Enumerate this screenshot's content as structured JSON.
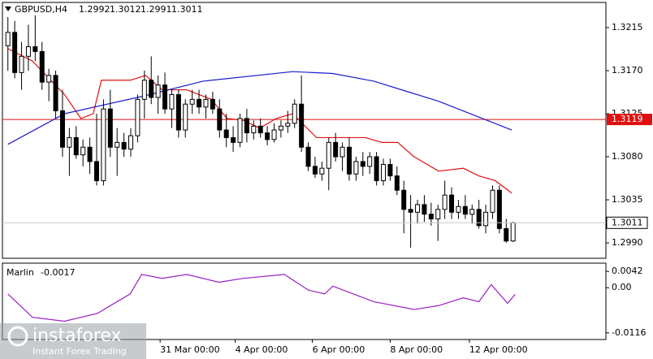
{
  "chart_data": [
    {
      "type": "candlestick",
      "title": "GBPUSD,H4",
      "open": [
        1.3196,
        1.321,
        1.3168,
        1.3185,
        1.3195,
        1.319,
        1.3158,
        1.3165,
        1.3128,
        1.309,
        1.31,
        1.3082,
        1.309,
        1.3075,
        1.3055,
        1.313,
        1.309,
        1.3095,
        1.3088,
        1.3102,
        1.314,
        1.316,
        1.3142,
        1.3155,
        1.313,
        1.3145,
        1.3108,
        1.3135,
        1.314,
        1.3132,
        1.314,
        1.313,
        1.3108,
        1.31,
        1.3095,
        1.312,
        1.3105,
        1.3112,
        1.3105,
        1.3098,
        1.3108,
        1.3112,
        1.3115,
        1.3135,
        1.309,
        1.307,
        1.3062,
        1.3068,
        1.3095,
        1.308,
        1.309,
        1.3062,
        1.3075,
        1.307,
        1.308,
        1.3055,
        1.3072,
        1.306,
        1.3045,
        1.3025,
        1.3022,
        1.303,
        1.302,
        1.3015,
        1.3025,
        1.304,
        1.3022,
        1.3028,
        1.302,
        1.3025,
        1.3008,
        1.3022,
        1.3045,
        1.3005,
        1.2992
      ],
      "high": [
        1.3226,
        1.3222,
        1.32,
        1.3218,
        1.3228,
        1.32,
        1.3172,
        1.317,
        1.315,
        1.311,
        1.3112,
        1.3098,
        1.31,
        1.3125,
        1.314,
        1.315,
        1.311,
        1.3105,
        1.311,
        1.3145,
        1.317,
        1.3185,
        1.3165,
        1.3168,
        1.315,
        1.315,
        1.314,
        1.315,
        1.315,
        1.3145,
        1.3148,
        1.314,
        1.3125,
        1.3112,
        1.3125,
        1.313,
        1.3118,
        1.312,
        1.3112,
        1.3115,
        1.3118,
        1.3128,
        1.314,
        1.3165,
        1.3095,
        1.308,
        1.3075,
        1.31,
        1.3105,
        1.3095,
        1.31,
        1.308,
        1.3085,
        1.3085,
        1.3085,
        1.3078,
        1.3078,
        1.307,
        1.3055,
        1.304,
        1.3035,
        1.304,
        1.3032,
        1.303,
        1.3055,
        1.3048,
        1.3035,
        1.304,
        1.303,
        1.3035,
        1.303,
        1.305,
        1.305,
        1.3015,
        1.3012
      ],
      "low": [
        1.317,
        1.3162,
        1.315,
        1.317,
        1.318,
        1.315,
        1.3138,
        1.312,
        1.308,
        1.306,
        1.3078,
        1.307,
        1.3062,
        1.305,
        1.305,
        1.308,
        1.306,
        1.308,
        1.308,
        1.3095,
        1.312,
        1.3135,
        1.3125,
        1.3125,
        1.311,
        1.31,
        1.31,
        1.3125,
        1.3125,
        1.312,
        1.3125,
        1.31,
        1.309,
        1.3085,
        1.309,
        1.3095,
        1.3098,
        1.31,
        1.3092,
        1.3095,
        1.31,
        1.3105,
        1.311,
        1.3085,
        1.3065,
        1.3058,
        1.3055,
        1.3045,
        1.3075,
        1.3065,
        1.3055,
        1.3055,
        1.306,
        1.3062,
        1.305,
        1.305,
        1.3055,
        1.304,
        1.3,
        1.2985,
        1.301,
        1.3012,
        1.3008,
        1.2992,
        1.3015,
        1.3015,
        1.3015,
        1.3015,
        1.301,
        1.3005,
        1.3,
        1.3015,
        1.3,
        1.299,
        1.2991
      ],
      "close": [
        1.321,
        1.3168,
        1.3185,
        1.3195,
        1.319,
        1.3158,
        1.3165,
        1.3128,
        1.309,
        1.31,
        1.3082,
        1.309,
        1.3075,
        1.3055,
        1.313,
        1.309,
        1.3095,
        1.3088,
        1.3102,
        1.314,
        1.316,
        1.3142,
        1.3155,
        1.313,
        1.3145,
        1.3108,
        1.3135,
        1.314,
        1.3132,
        1.314,
        1.313,
        1.3108,
        1.31,
        1.3095,
        1.312,
        1.3105,
        1.3112,
        1.3105,
        1.3098,
        1.3108,
        1.3112,
        1.3115,
        1.3135,
        1.309,
        1.307,
        1.3062,
        1.3068,
        1.3095,
        1.308,
        1.309,
        1.3062,
        1.3075,
        1.307,
        1.308,
        1.3055,
        1.3072,
        1.306,
        1.3045,
        1.3025,
        1.3022,
        1.303,
        1.302,
        1.3015,
        1.3025,
        1.304,
        1.3022,
        1.3028,
        1.302,
        1.3025,
        1.3008,
        1.3022,
        1.3045,
        1.3005,
        1.2992,
        1.3011
      ],
      "series": [
        {
          "color": "#e01010",
          "x": [
            0,
            3.6,
            8.3,
            10.7,
            12.5,
            13.7,
            17.9,
            20.2,
            22.6,
            26.2,
            29.8,
            32.1,
            34.5,
            36.9,
            39.3,
            41.7,
            45.2,
            47.6,
            52.4,
            54.8,
            57.1,
            59.5,
            63.1,
            66.7,
            69,
            71.4,
            73.8
          ],
          "values": [
            1.3193,
            1.318,
            1.3145,
            1.312,
            1.3125,
            1.316,
            1.316,
            1.3165,
            1.315,
            1.315,
            1.314,
            1.312,
            1.3118,
            1.311,
            1.312,
            1.3125,
            1.31,
            1.31,
            1.31,
            1.3095,
            1.3095,
            1.308,
            1.3065,
            1.3068,
            1.306,
            1.3055,
            1.3042
          ]
        },
        {
          "color": "#1a1acc",
          "x": [
            0,
            8.3,
            20.2,
            28.6,
            41.7,
            47.6,
            53.6,
            63.1,
            73.8
          ],
          "values": [
            1.3093,
            1.3125,
            1.3144,
            1.3159,
            1.3169,
            1.3167,
            1.3159,
            1.3138,
            1.3108
          ]
        }
      ],
      "hline": {
        "value": 1.3119,
        "label": "1.3119",
        "color": "#e01010"
      },
      "ylim": [
        1.29739,
        1.32413
      ],
      "yticks": [
        1.3215,
        {
          "value": 1.317,
          "label": "1.3170"
        },
        1.3125,
        {
          "value": 1.308,
          "label": "1.3080"
        },
        1.3035,
        {
          "value": 1.299,
          "label": "1.2990"
        }
      ],
      "xlim": [
        -0.8,
        87.6
      ],
      "xticks": [
        {
          "value": 22.3,
          "label": "31 Mar 00:00"
        },
        {
          "value": 33.3,
          "label": "4 Apr 00:00"
        },
        {
          "value": 44.6,
          "label": "6 Apr 00:00"
        },
        {
          "value": 56,
          "label": "8 Apr 00:00"
        },
        {
          "value": 67.6,
          "label": "12 Apr 00:00"
        }
      ],
      "annotations": [
        "instaforex",
        "Instant Forex Trading"
      ]
    },
    {
      "type": "line",
      "title": "Marlin",
      "series": [
        {
          "color": "#9a1fc0",
          "x": [
            0,
            3.6,
            8.3,
            13.1,
            17.9,
            19.6,
            22.6,
            26.2,
            30.9,
            34.5,
            40.5,
            44,
            46.4,
            47.6,
            53.6,
            59.5,
            63.1,
            66.7,
            69,
            70.8,
            73.2,
            74.3
          ],
          "values": [
            -0.0016,
            -0.0076,
            -0.0086,
            -0.0066,
            -0.0016,
            0.0034,
            0.0024,
            0.0034,
            0.0014,
            0.0024,
            0.0034,
            -0.0006,
            -0.0016,
            0.0004,
            -0.0036,
            -0.0056,
            -0.0046,
            -0.0026,
            -0.0036,
            0.0008,
            -0.004,
            -0.0017
          ]
        }
      ],
      "ylim": [
        -0.0133,
        0.0063
      ],
      "yticks": [
        0.0042,
        {
          "value": 0,
          "label": "0.00"
        },
        -0.0116
      ]
    }
  ]
}
